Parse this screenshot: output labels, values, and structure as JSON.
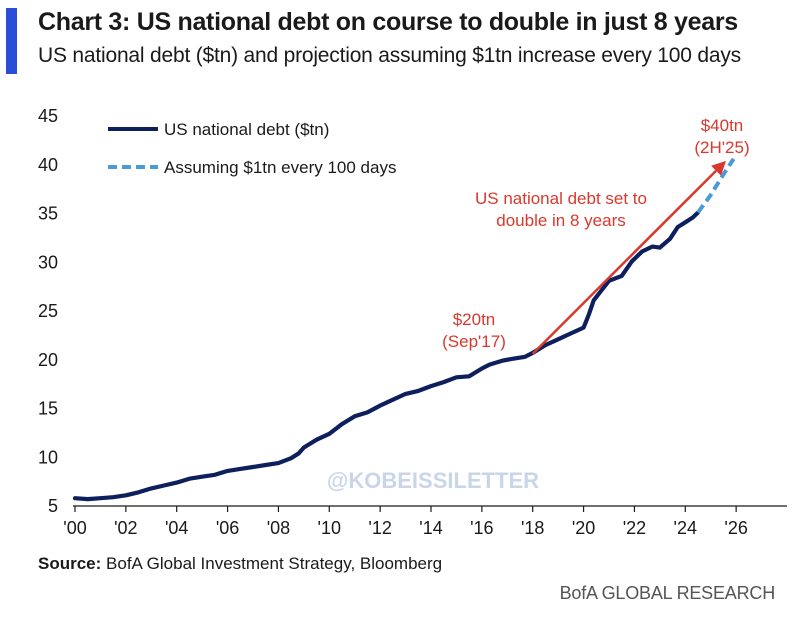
{
  "header": {
    "title": "Chart 3: US national debt on course to double in just 8 years",
    "subtitle": "US national debt ($tn) and projection assuming $1tn increase every 100 days"
  },
  "watermark": "@KOBEISSILETTER",
  "footer": {
    "source_label": "Source:",
    "source_text": " BofA Global Investment Strategy, Bloomberg",
    "brand": "BofA GLOBAL RESEARCH"
  },
  "colors": {
    "series_actual": "#0d1f5c",
    "series_projection": "#4a9ad6",
    "annotation": "#d9382c",
    "accent": "#2a4fd6",
    "watermark": "#c9d6ea"
  },
  "chart_data": {
    "type": "line",
    "title": "Chart 3: US national debt on course to double in just 8 years",
    "subtitle": "US national debt ($tn) and projection assuming $1tn increase every 100 days",
    "xlabel": "",
    "ylabel": "",
    "xlim": [
      2000,
      2028
    ],
    "ylim": [
      5,
      45
    ],
    "x_ticks": [
      2000,
      2002,
      2004,
      2006,
      2008,
      2010,
      2012,
      2014,
      2016,
      2018,
      2020,
      2022,
      2024,
      2026
    ],
    "x_tick_labels": [
      "'00",
      "'02",
      "'04",
      "'06",
      "'08",
      "'10",
      "'12",
      "'14",
      "'16",
      "'18",
      "'20",
      "'22",
      "'24",
      "'26"
    ],
    "y_ticks": [
      5,
      10,
      15,
      20,
      25,
      30,
      35,
      40,
      45
    ],
    "y_tick_labels": [
      "5",
      "10",
      "15",
      "20",
      "25",
      "30",
      "35",
      "40",
      "45"
    ],
    "grid": false,
    "legend_position": "top-left",
    "series": [
      {
        "name": "US national debt ($tn)",
        "style": "solid",
        "x": [
          2000.0,
          2000.5,
          2001.0,
          2001.5,
          2002.0,
          2002.5,
          2003.0,
          2003.5,
          2004.0,
          2004.5,
          2005.0,
          2005.5,
          2006.0,
          2006.5,
          2007.0,
          2007.5,
          2008.0,
          2008.5,
          2008.8,
          2009.0,
          2009.5,
          2010.0,
          2010.5,
          2011.0,
          2011.5,
          2012.0,
          2012.5,
          2013.0,
          2013.5,
          2014.0,
          2014.5,
          2015.0,
          2015.5,
          2016.0,
          2016.3,
          2016.8,
          2017.2,
          2017.7,
          2018.0,
          2018.5,
          2019.0,
          2019.5,
          2020.0,
          2020.2,
          2020.4,
          2020.7,
          2021.0,
          2021.5,
          2021.9,
          2022.3,
          2022.7,
          2023.0,
          2023.4,
          2023.7,
          2024.0,
          2024.3,
          2024.5
        ],
        "y": [
          5.7,
          5.6,
          5.7,
          5.8,
          6.0,
          6.3,
          6.7,
          7.0,
          7.3,
          7.7,
          7.9,
          8.1,
          8.5,
          8.7,
          8.9,
          9.1,
          9.3,
          9.8,
          10.3,
          10.9,
          11.7,
          12.3,
          13.3,
          14.1,
          14.5,
          15.2,
          15.8,
          16.4,
          16.7,
          17.2,
          17.6,
          18.1,
          18.2,
          19.0,
          19.4,
          19.8,
          20.0,
          20.2,
          20.6,
          21.4,
          22.0,
          22.6,
          23.2,
          24.5,
          26.0,
          27.0,
          28.0,
          28.5,
          30.0,
          31.0,
          31.5,
          31.4,
          32.3,
          33.5,
          34.0,
          34.5,
          35.0
        ]
      },
      {
        "name": "Assuming $1tn every 100 days",
        "style": "dashed",
        "x": [
          2024.5,
          2025.0,
          2025.5,
          2025.9
        ],
        "y": [
          35.0,
          36.8,
          38.9,
          40.5
        ]
      }
    ],
    "annotations": [
      {
        "text_lines": [
          "$20tn",
          "(Sep'17)"
        ],
        "x": 2017.7,
        "y": 20
      },
      {
        "text_lines": [
          "$40tn",
          "(2H'25)"
        ],
        "x": 2025.9,
        "y": 40.5
      },
      {
        "text_lines": [
          "US national debt set to",
          "double in 8 years"
        ],
        "x": 2021.5,
        "y": 35
      }
    ],
    "arrow": {
      "from": [
        2018.0,
        20.5
      ],
      "to": [
        2025.6,
        40.3
      ]
    }
  }
}
